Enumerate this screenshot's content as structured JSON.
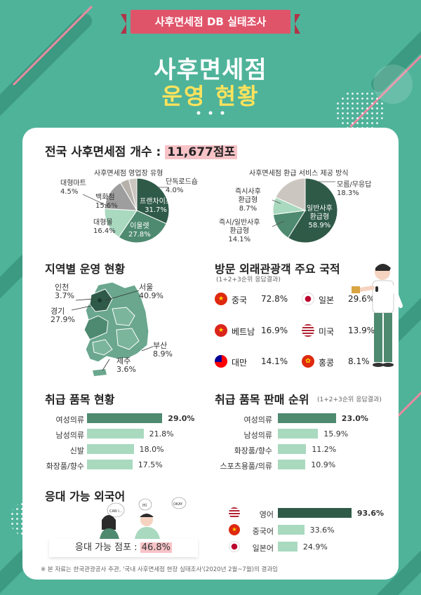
{
  "header": {
    "ribbon": "사후면세점 DB 실태조사",
    "title_line1": "사후면세점",
    "title_line2": "운영 현황"
  },
  "total": {
    "label": "전국 사후면세점 개수 :",
    "value": "11,677점포"
  },
  "illustration_texts": [
    "CAN I...",
    "Hi",
    "OKAY"
  ],
  "colors": {
    "background": "#4fb39a",
    "dark_green": "#2f5a48",
    "mid_green": "#4e8a70",
    "light_green": "#a9d9bf",
    "gray": "#9e9e9e",
    "light_gray": "#ccc6c0",
    "accent_pink": "#e0546a",
    "title_yellow": "#ffe35c"
  },
  "pie_type": {
    "title": "사후면세점 영업장 유형",
    "labels": {
      "standalone": [
        "단독로드숍",
        "4.0%"
      ],
      "franchise": [
        "프랜차이즈",
        "31.7%"
      ],
      "mart": [
        "이울렛",
        "27.8%"
      ],
      "mall": [
        "대형몰",
        "16.4%"
      ],
      "dept": [
        "백화점",
        "15.6%"
      ],
      "hyper": [
        "대형마트",
        "4.5%"
      ]
    }
  },
  "pie_refund": {
    "title": "사후면세점 환급 서비스 제공 방식",
    "labels": {
      "other": [
        "모름/무응답",
        "18.3%"
      ],
      "general": [
        "일반사후",
        "환급형",
        "58.9%"
      ],
      "both": [
        "즉시/일반사후",
        "환급형",
        "14.1%"
      ],
      "instant": [
        "즉시사후",
        "환급형",
        "8.7%"
      ]
    }
  },
  "region": {
    "title": "지역별 운영 현황",
    "labels": {
      "seoul": [
        "서울",
        "40.9%"
      ],
      "incheon": [
        "인천",
        "3.7%"
      ],
      "gyeonggi": [
        "경기",
        "27.9%"
      ],
      "busan": [
        "부산",
        "8.9%"
      ],
      "jeju": [
        "제주",
        "3.6%"
      ]
    }
  },
  "visitors": {
    "title": "방문 외래관광객 주요 국적",
    "note": "(1+2+3순위 응답결과)",
    "items": [
      {
        "name": "중국",
        "value": "72.8%",
        "flag": "china-flag-icon"
      },
      {
        "name": "일본",
        "value": "29.6%",
        "flag": "japan-flag-icon"
      },
      {
        "name": "베트남",
        "value": "16.9%",
        "flag": "vietnam-flag-icon"
      },
      {
        "name": "미국",
        "value": "13.9%",
        "flag": "usa-flag-icon"
      },
      {
        "name": "대만",
        "value": "14.1%",
        "flag": "taiwan-flag-icon"
      },
      {
        "name": "홍콩",
        "value": "8.1%",
        "flag": "hongkong-flag-icon"
      }
    ]
  },
  "goods": {
    "title": "취급 품목 현황",
    "items": [
      {
        "label": "여성의류",
        "value": "29.0%"
      },
      {
        "label": "남성의류",
        "value": "21.8%"
      },
      {
        "label": "신발",
        "value": "18.0%"
      },
      {
        "label": "화장품/향수",
        "value": "17.5%"
      }
    ]
  },
  "sales": {
    "title": "취급 품목 판매 순위",
    "note": "(1+2+3순위 응답결과)",
    "items": [
      {
        "label": "여성의류",
        "value": "23.0%"
      },
      {
        "label": "남성의류",
        "value": "15.9%"
      },
      {
        "label": "화장품/향수",
        "value": "11.2%"
      },
      {
        "label": "스포츠용품/의류",
        "value": "10.9%"
      }
    ]
  },
  "languages": {
    "title": "응대 가능 외국어",
    "stores_label": "응대 가능 점포 :",
    "stores_value": "46.8%",
    "items": [
      {
        "label": "영어",
        "value": "93.6%",
        "flag": "usa-flag-icon"
      },
      {
        "label": "중국어",
        "value": "33.6%",
        "flag": "china-flag-icon"
      },
      {
        "label": "일본어",
        "value": "24.9%",
        "flag": "japan-flag-icon"
      }
    ]
  },
  "footnote": "※ 본 자료는 한국관광공사 주관, '국내 사후면세점 현장 실태조사'(2020년 2월~7월)의 결과임",
  "chart_data": [
    {
      "type": "pie",
      "title": "사후면세점 영업장 유형",
      "categories": [
        "프랜차이즈",
        "이울렛",
        "대형몰",
        "백화점",
        "대형마트",
        "단독로드숍"
      ],
      "values": [
        31.7,
        27.8,
        16.4,
        15.6,
        4.5,
        4.0
      ]
    },
    {
      "type": "pie",
      "title": "사후면세점 환급 서비스 제공 방식",
      "categories": [
        "일반사후 환급형",
        "즉시/일반사후 환급형",
        "즉시사후 환급형",
        "모름/무응답"
      ],
      "values": [
        58.9,
        14.1,
        8.7,
        18.3
      ]
    },
    {
      "type": "bar",
      "title": "방문 외래관광객 주요 국적",
      "categories": [
        "중국",
        "일본",
        "베트남",
        "미국",
        "대만",
        "홍콩"
      ],
      "values": [
        72.8,
        29.6,
        16.9,
        13.9,
        14.1,
        8.1
      ]
    },
    {
      "type": "bar",
      "title": "취급 품목 현황",
      "categories": [
        "여성의류",
        "남성의류",
        "신발",
        "화장품/향수"
      ],
      "values": [
        29.0,
        21.8,
        18.0,
        17.5
      ]
    },
    {
      "type": "bar",
      "title": "취급 품목 판매 순위",
      "categories": [
        "여성의류",
        "남성의류",
        "화장품/향수",
        "스포츠용품/의류"
      ],
      "values": [
        23.0,
        15.9,
        11.2,
        10.9
      ]
    },
    {
      "type": "bar",
      "title": "응대 가능 외국어",
      "categories": [
        "영어",
        "중국어",
        "일본어"
      ],
      "values": [
        93.6,
        33.6,
        24.9
      ]
    }
  ]
}
